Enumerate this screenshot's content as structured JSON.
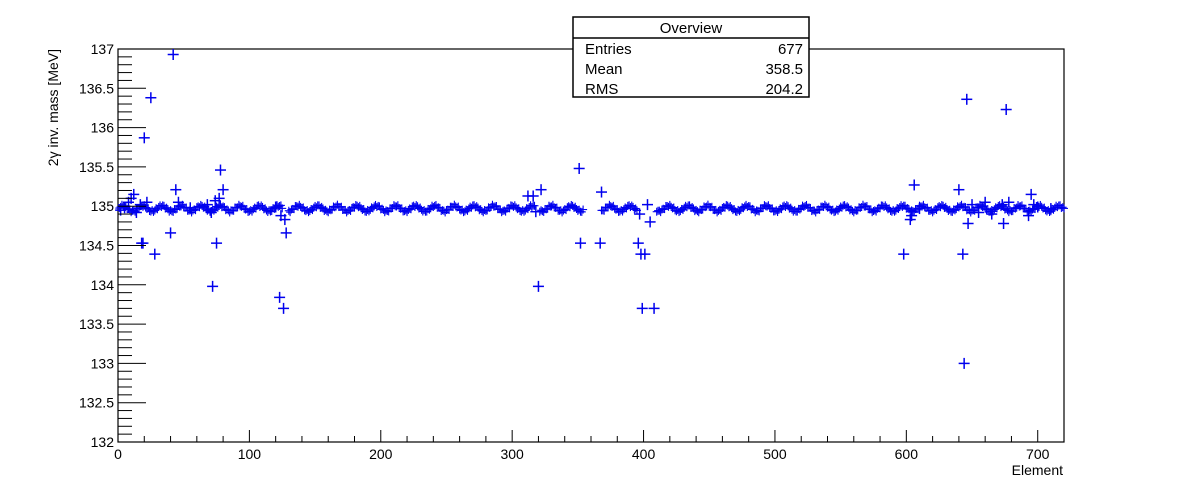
{
  "chart_data": {
    "type": "scatter",
    "title": "",
    "xlabel": "Element",
    "ylabel": "2γ inv. mass [MeV]",
    "xlim": [
      0,
      720
    ],
    "ylim": [
      132,
      137
    ],
    "x_ticks": [
      0,
      100,
      200,
      300,
      400,
      500,
      600,
      700
    ],
    "y_ticks": [
      132,
      132.5,
      133,
      133.5,
      134,
      134.5,
      135,
      135.5,
      136,
      136.5,
      137
    ],
    "x_tick_labels": [
      "0",
      "100",
      "200",
      "300",
      "400",
      "500",
      "600",
      "700"
    ],
    "y_tick_labels": [
      "132",
      "132.5",
      "133",
      "133.5",
      "134",
      "134.5",
      "135",
      "135.5",
      "136",
      "136.5",
      "137"
    ],
    "grid": false,
    "marker": "plus",
    "marker_color": "#0000ee",
    "legend": null,
    "stats_box": {
      "title": "Overview",
      "rows": [
        {
          "label": "Entries",
          "value": "677"
        },
        {
          "label": "Mean",
          "value": "358.5"
        },
        {
          "label": "RMS",
          "value": "204.2"
        }
      ]
    },
    "baseline": {
      "value": 134.97,
      "segments": [
        [
          1,
          125
        ],
        [
          130,
          317
        ],
        [
          321,
          354
        ],
        [
          368,
          395
        ],
        [
          410,
          720
        ]
      ]
    },
    "points": [
      {
        "x": 2,
        "y": 134.95
      },
      {
        "x": 5,
        "y": 134.98
      },
      {
        "x": 8,
        "y": 135.05
      },
      {
        "x": 10,
        "y": 135.1
      },
      {
        "x": 12,
        "y": 135.15
      },
      {
        "x": 14,
        "y": 134.92
      },
      {
        "x": 17,
        "y": 135.02
      },
      {
        "x": 18,
        "y": 134.53
      },
      {
        "x": 19,
        "y": 134.53
      },
      {
        "x": 20,
        "y": 135.87
      },
      {
        "x": 22,
        "y": 135.05
      },
      {
        "x": 25,
        "y": 136.38
      },
      {
        "x": 28,
        "y": 134.39
      },
      {
        "x": 40,
        "y": 134.66
      },
      {
        "x": 42,
        "y": 136.93
      },
      {
        "x": 44,
        "y": 135.21
      },
      {
        "x": 46,
        "y": 135.05
      },
      {
        "x": 55,
        "y": 134.98
      },
      {
        "x": 68,
        "y": 135.02
      },
      {
        "x": 71,
        "y": 134.92
      },
      {
        "x": 72,
        "y": 133.98
      },
      {
        "x": 74,
        "y": 135.07
      },
      {
        "x": 75,
        "y": 134.53
      },
      {
        "x": 77,
        "y": 135.1
      },
      {
        "x": 78,
        "y": 135.46
      },
      {
        "x": 80,
        "y": 135.21
      },
      {
        "x": 120,
        "y": 134.99
      },
      {
        "x": 123,
        "y": 133.84
      },
      {
        "x": 124,
        "y": 134.88
      },
      {
        "x": 126,
        "y": 133.7
      },
      {
        "x": 127,
        "y": 134.83
      },
      {
        "x": 128,
        "y": 134.66
      },
      {
        "x": 312,
        "y": 135.13
      },
      {
        "x": 316,
        "y": 135.13
      },
      {
        "x": 318,
        "y": 134.93
      },
      {
        "x": 320,
        "y": 133.98
      },
      {
        "x": 322,
        "y": 135.21
      },
      {
        "x": 351,
        "y": 135.48
      },
      {
        "x": 352,
        "y": 134.53
      },
      {
        "x": 367,
        "y": 134.53
      },
      {
        "x": 368,
        "y": 135.18
      },
      {
        "x": 396,
        "y": 134.53
      },
      {
        "x": 397,
        "y": 134.9
      },
      {
        "x": 398,
        "y": 134.39
      },
      {
        "x": 399,
        "y": 133.7
      },
      {
        "x": 401,
        "y": 134.39
      },
      {
        "x": 403,
        "y": 135.02
      },
      {
        "x": 405,
        "y": 134.8
      },
      {
        "x": 408,
        "y": 133.7
      },
      {
        "x": 598,
        "y": 134.39
      },
      {
        "x": 603,
        "y": 134.83
      },
      {
        "x": 604,
        "y": 134.88
      },
      {
        "x": 606,
        "y": 135.27
      },
      {
        "x": 610,
        "y": 134.97
      },
      {
        "x": 640,
        "y": 135.21
      },
      {
        "x": 643,
        "y": 134.39
      },
      {
        "x": 644,
        "y": 133.0
      },
      {
        "x": 646,
        "y": 136.36
      },
      {
        "x": 647,
        "y": 134.78
      },
      {
        "x": 650,
        "y": 135.02
      },
      {
        "x": 655,
        "y": 134.92
      },
      {
        "x": 660,
        "y": 135.05
      },
      {
        "x": 665,
        "y": 134.9
      },
      {
        "x": 673,
        "y": 135.02
      },
      {
        "x": 674,
        "y": 134.78
      },
      {
        "x": 676,
        "y": 136.23
      },
      {
        "x": 678,
        "y": 135.05
      },
      {
        "x": 693,
        "y": 134.88
      },
      {
        "x": 695,
        "y": 135.15
      },
      {
        "x": 697,
        "y": 135.02
      },
      {
        "x": 700,
        "y": 134.99
      },
      {
        "x": 710,
        "y": 134.97
      }
    ]
  }
}
